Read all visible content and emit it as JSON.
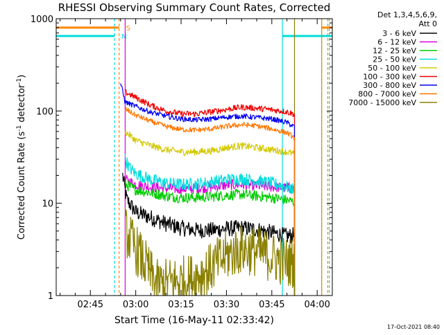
{
  "chart_data": {
    "type": "line",
    "title": "RHESSI Observing Summary Count Rates, Corrected",
    "xlabel": "Start Time (16-May-11 02:33:42)",
    "ylabel_main": "Corrected Count Rate (s",
    "ylabel_mid": " detector",
    "ylabel_end": ")",
    "ylabel_sup": "-1",
    "yscale": "log",
    "ylim": [
      1,
      1000
    ],
    "y_ticks": [
      {
        "value": 1,
        "label": "1"
      },
      {
        "value": 10,
        "label": "10"
      },
      {
        "value": 100,
        "label": "100"
      },
      {
        "value": 1000,
        "label": "1000"
      }
    ],
    "xlim": [
      "02:33:42",
      "04:05:00"
    ],
    "x_ticks": [
      {
        "value": "02:45",
        "label": "02:45"
      },
      {
        "value": "03:00",
        "label": "03:00"
      },
      {
        "value": "03:15",
        "label": "03:15"
      },
      {
        "value": "03:30",
        "label": "03:30"
      },
      {
        "value": "03:45",
        "label": "03:45"
      },
      {
        "value": "04:00",
        "label": "04:00"
      }
    ],
    "legend_header": [
      "Det 1,3,4,5,6,9,",
      "Att 0"
    ],
    "legend_position": "top-right",
    "footer_timestamp": "17-Oct-2021 08:40",
    "series": [
      {
        "name": "3 - 6 keV",
        "color": "#000000",
        "noise": 0.09,
        "points": [
          [
            "02:55:40",
            20
          ],
          [
            "02:57:00",
            11
          ],
          [
            "03:00:00",
            8
          ],
          [
            "03:05:00",
            7
          ],
          [
            "03:10:00",
            6
          ],
          [
            "03:15:00",
            5.4
          ],
          [
            "03:20:00",
            5.1
          ],
          [
            "03:25:00",
            5.1
          ],
          [
            "03:30:00",
            5.3
          ],
          [
            "03:35:00",
            5.4
          ],
          [
            "03:40:00",
            5.2
          ],
          [
            "03:45:00",
            4.8
          ],
          [
            "03:50:00",
            4.4
          ],
          [
            "03:52:30",
            4.5
          ]
        ]
      },
      {
        "name": "6 - 12 keV",
        "color": "#dd00dd",
        "noise": 0.06,
        "points": [
          [
            "02:56:30",
            18
          ],
          [
            "03:00:00",
            16
          ],
          [
            "03:05:00",
            15
          ],
          [
            "03:10:00",
            14.5
          ],
          [
            "03:15:00",
            14.3
          ],
          [
            "03:20:00",
            14.5
          ],
          [
            "03:25:00",
            15
          ],
          [
            "03:30:00",
            15.7
          ],
          [
            "03:35:00",
            16
          ],
          [
            "03:40:00",
            15.5
          ],
          [
            "03:45:00",
            15.1
          ],
          [
            "03:50:00",
            14.6
          ],
          [
            "03:52:30",
            14.5
          ]
        ]
      },
      {
        "name": "12 - 25 keV",
        "color": "#00cc00",
        "noise": 0.06,
        "points": [
          [
            "02:56:30",
            16
          ],
          [
            "03:00:00",
            14
          ],
          [
            "03:05:00",
            13
          ],
          [
            "03:10:00",
            12
          ],
          [
            "03:15:00",
            11.5
          ],
          [
            "03:20:00",
            11.5
          ],
          [
            "03:25:00",
            11.8
          ],
          [
            "03:30:00",
            12.2
          ],
          [
            "03:35:00",
            12.5
          ],
          [
            "03:40:00",
            12
          ],
          [
            "03:45:00",
            11.5
          ],
          [
            "03:50:00",
            10.8
          ],
          [
            "03:52:30",
            10.3
          ]
        ]
      },
      {
        "name": "25 - 50 keV",
        "color": "#00dddd",
        "noise": 0.07,
        "points": [
          [
            "02:56:30",
            30
          ],
          [
            "02:58:00",
            24
          ],
          [
            "03:00:00",
            21
          ],
          [
            "03:05:00",
            18
          ],
          [
            "03:10:00",
            16.5
          ],
          [
            "03:15:00",
            16
          ],
          [
            "03:20:00",
            16.2
          ],
          [
            "03:25:00",
            17
          ],
          [
            "03:30:00",
            18
          ],
          [
            "03:35:00",
            18.5
          ],
          [
            "03:40:00",
            17.5
          ],
          [
            "03:45:00",
            16.5
          ],
          [
            "03:50:00",
            15
          ],
          [
            "03:52:30",
            14
          ]
        ]
      },
      {
        "name": "50 - 100 keV",
        "color": "#d4c800",
        "noise": 0.04,
        "points": [
          [
            "02:56:30",
            60
          ],
          [
            "03:00:00",
            48
          ],
          [
            "03:05:00",
            42
          ],
          [
            "03:10:00",
            38
          ],
          [
            "03:15:00",
            36
          ],
          [
            "03:20:00",
            36
          ],
          [
            "03:25:00",
            37
          ],
          [
            "03:30:00",
            40
          ],
          [
            "03:35:00",
            42
          ],
          [
            "03:40:00",
            40
          ],
          [
            "03:45:00",
            38
          ],
          [
            "03:50:00",
            36
          ],
          [
            "03:52:30",
            34
          ]
        ]
      },
      {
        "name": "100 - 300 keV",
        "color": "#ee0000",
        "noise": 0.035,
        "points": [
          [
            "02:56:30",
            160
          ],
          [
            "03:00:00",
            140
          ],
          [
            "03:05:00",
            115
          ],
          [
            "03:10:00",
            100
          ],
          [
            "03:15:00",
            93
          ],
          [
            "03:20:00",
            93
          ],
          [
            "03:25:00",
            98
          ],
          [
            "03:30:00",
            104
          ],
          [
            "03:35:00",
            110
          ],
          [
            "03:40:00",
            107
          ],
          [
            "03:45:00",
            103
          ],
          [
            "03:50:00",
            98
          ],
          [
            "03:52:30",
            92
          ]
        ]
      },
      {
        "name": "300 - 800 keV",
        "color": "#0000ee",
        "noise": 0.03,
        "points": [
          [
            "02:55:00",
            200
          ],
          [
            "02:56:30",
            125
          ],
          [
            "03:00:00",
            112
          ],
          [
            "03:05:00",
            97
          ],
          [
            "03:10:00",
            88
          ],
          [
            "03:15:00",
            82
          ],
          [
            "03:20:00",
            80
          ],
          [
            "03:25:00",
            82
          ],
          [
            "03:30:00",
            86
          ],
          [
            "03:35:00",
            88
          ],
          [
            "03:40:00",
            85
          ],
          [
            "03:45:00",
            82
          ],
          [
            "03:50:00",
            75
          ],
          [
            "03:52:30",
            67
          ]
        ]
      },
      {
        "name": "800 - 7000 keV",
        "color": "#ff7700",
        "noise": 0.03,
        "points": [
          [
            "02:56:30",
            105
          ],
          [
            "03:00:00",
            90
          ],
          [
            "03:05:00",
            77
          ],
          [
            "03:10:00",
            68
          ],
          [
            "03:15:00",
            63
          ],
          [
            "03:20:00",
            62
          ],
          [
            "03:25:00",
            64
          ],
          [
            "03:30:00",
            68
          ],
          [
            "03:35:00",
            71
          ],
          [
            "03:40:00",
            69
          ],
          [
            "03:45:00",
            64
          ],
          [
            "03:50:00",
            58
          ],
          [
            "03:52:30",
            51
          ]
        ]
      },
      {
        "name": "7000 - 15000 keV",
        "color": "#8a8000",
        "noise": 0.28,
        "points": [
          [
            "02:56:30",
            5
          ],
          [
            "03:00:00",
            3.2
          ],
          [
            "03:03:00",
            2.2
          ],
          [
            "03:07:00",
            1.3
          ],
          [
            "03:12:00",
            1.4
          ],
          [
            "03:18:00",
            1.5
          ],
          [
            "03:24:00",
            1.9
          ],
          [
            "03:30:00",
            2.7
          ],
          [
            "03:35:00",
            3.2
          ],
          [
            "03:40:00",
            3.0
          ],
          [
            "03:45:00",
            2.6
          ],
          [
            "03:50:00",
            2.3
          ],
          [
            "03:52:30",
            2.3
          ]
        ]
      }
    ],
    "flag_bars": [
      {
        "label": "S",
        "color": "#ff8800",
        "y": 800,
        "segments": [
          [
            "02:33:42",
            "02:54:30"
          ],
          [
            "04:01:30",
            "04:05:00"
          ]
        ]
      },
      {
        "label": "N",
        "color": "#00dddd",
        "y": 650,
        "segments": [
          [
            "02:33:42",
            "02:53:00"
          ],
          [
            "03:48:30",
            "04:05:00"
          ]
        ]
      }
    ],
    "markers": [
      {
        "time": "02:54:30",
        "color": "#ff8800",
        "style": "dashed"
      },
      {
        "time": "02:53:00",
        "color": "#00dddd",
        "style": "dashed"
      },
      {
        "time": "04:03:30",
        "color": "#ff8800",
        "style": "dashed"
      },
      {
        "time": "04:04:00",
        "color": "#00dddd",
        "style": "dashed"
      },
      {
        "time": "03:48:30",
        "color": "#00dddd",
        "style": "solid"
      },
      {
        "time": "04:01:30",
        "color": "#cc8800",
        "style": "solid"
      },
      {
        "time": "02:56:30",
        "color": "#dd00dd",
        "style": "solid"
      },
      {
        "time": "03:52:30",
        "color": "#8a8000",
        "style": "solid"
      }
    ]
  }
}
